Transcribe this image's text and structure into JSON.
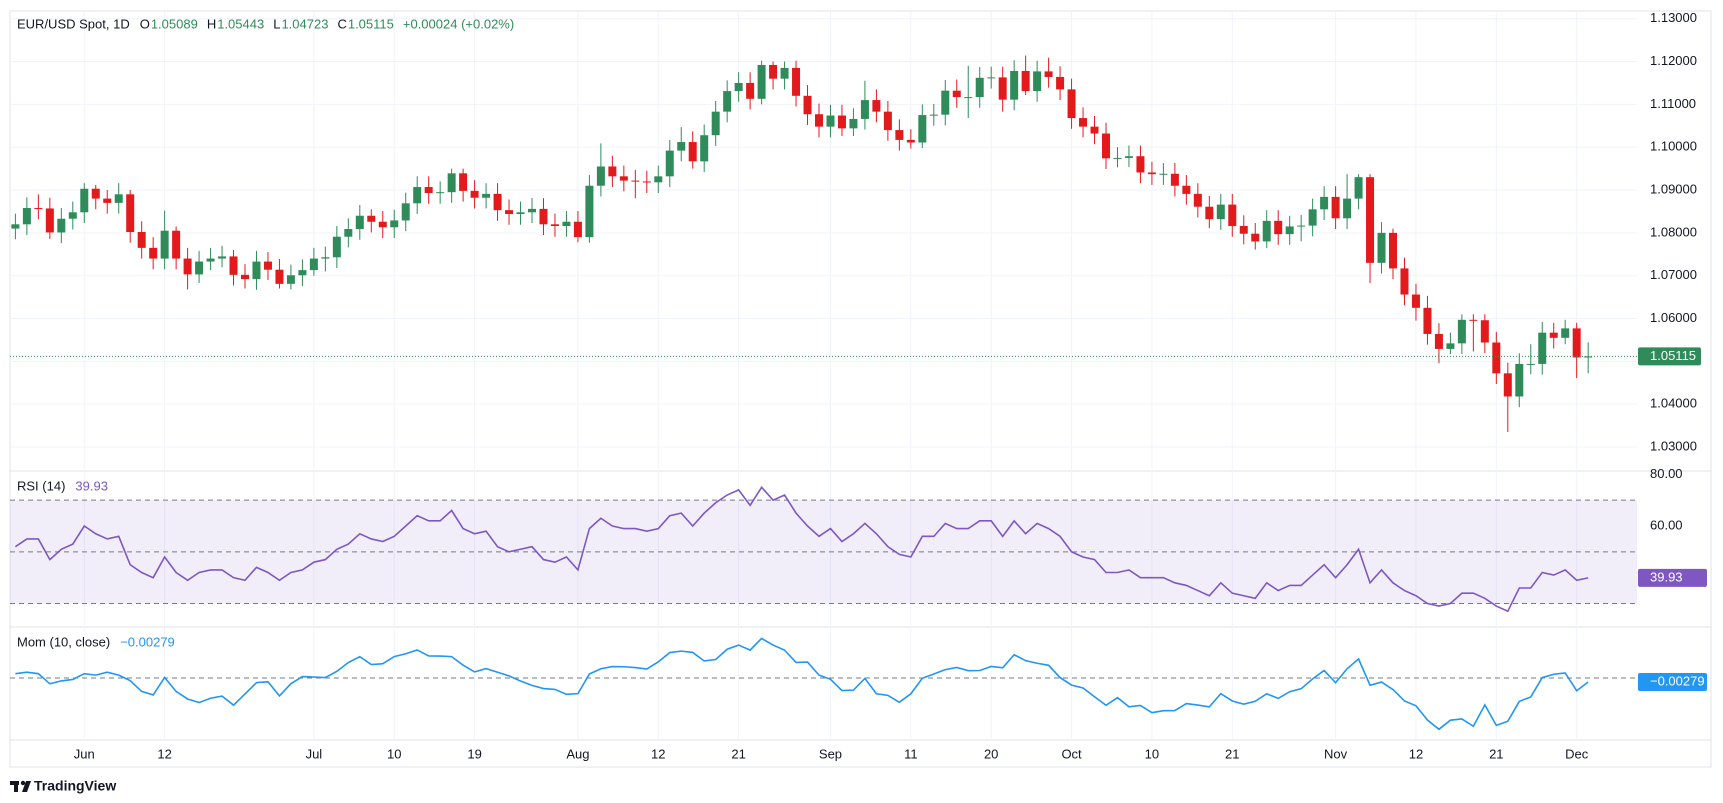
{
  "header": {
    "symbol": "EUR/USD Spot, 1D",
    "o_label": "O",
    "open": "1.05089",
    "h_label": "H",
    "high": "1.05443",
    "l_label": "L",
    "low": "1.04723",
    "c_label": "C",
    "close": "1.05115",
    "change": "+0.00024 (+0.02%)"
  },
  "chart_data": [
    {
      "type": "candlestick",
      "up_color": "#2f8c5a",
      "down_color": "#e31a1c",
      "grid": true,
      "ylim": [
        1.0244,
        1.1318
      ],
      "yticks": [
        {
          "value": 1.03,
          "label": "1.03000"
        },
        {
          "value": 1.04,
          "label": "1.04000"
        },
        {
          "value": 1.05,
          "label": "1.05000"
        },
        {
          "value": 1.06,
          "label": "1.06000"
        },
        {
          "value": 1.07,
          "label": "1.07000"
        },
        {
          "value": 1.08,
          "label": "1.08000"
        },
        {
          "value": 1.09,
          "label": "1.09000"
        },
        {
          "value": 1.1,
          "label": "1.10000"
        },
        {
          "value": 1.11,
          "label": "1.11000"
        },
        {
          "value": 1.12,
          "label": "1.12000"
        },
        {
          "value": 1.13,
          "label": "1.13000"
        }
      ],
      "xticks": [
        {
          "value": 6,
          "label": "Jun"
        },
        {
          "value": 13,
          "label": "12"
        },
        {
          "value": 26,
          "label": "Jul"
        },
        {
          "value": 33,
          "label": "10"
        },
        {
          "value": 40,
          "label": "19"
        },
        {
          "value": 49,
          "label": "Aug"
        },
        {
          "value": 56,
          "label": "12"
        },
        {
          "value": 63,
          "label": "21"
        },
        {
          "value": 71,
          "label": "Sep"
        },
        {
          "value": 78,
          "label": "11"
        },
        {
          "value": 85,
          "label": "20"
        },
        {
          "value": 92,
          "label": "Oct"
        },
        {
          "value": 99,
          "label": "10"
        },
        {
          "value": 106,
          "label": "21"
        },
        {
          "value": 115,
          "label": "Nov"
        },
        {
          "value": 122,
          "label": "12"
        },
        {
          "value": 129,
          "label": "21"
        },
        {
          "value": 136,
          "label": "Dec"
        }
      ],
      "last_price_label": "1.05115",
      "candles": [
        [
          1.081,
          1.0845,
          1.0785,
          1.082
        ],
        [
          1.082,
          1.0883,
          1.0795,
          1.0858
        ],
        [
          1.0858,
          1.089,
          1.0832,
          1.0857
        ],
        [
          1.0857,
          1.0882,
          1.0786,
          1.0801
        ],
        [
          1.0801,
          1.0858,
          1.0776,
          1.0833
        ],
        [
          1.0833,
          1.0873,
          1.0808,
          1.0848
        ],
        [
          1.0848,
          1.0916,
          1.0823,
          1.0903
        ],
        [
          1.0903,
          1.0912,
          1.0855,
          1.088
        ],
        [
          1.088,
          1.09,
          1.0845,
          1.087
        ],
        [
          1.087,
          1.0916,
          1.0845,
          1.089
        ],
        [
          1.089,
          1.09,
          1.0777,
          1.0802
        ],
        [
          1.0802,
          1.0827,
          1.074,
          1.0765
        ],
        [
          1.0765,
          1.079,
          1.0715,
          1.074
        ],
        [
          1.074,
          1.0852,
          1.0715,
          1.0805
        ],
        [
          1.0805,
          1.0815,
          1.0715,
          1.074
        ],
        [
          1.074,
          1.0765,
          1.0668,
          1.0703
        ],
        [
          1.0703,
          1.0758,
          1.0683,
          1.0733
        ],
        [
          1.0733,
          1.0765,
          1.0713,
          1.074
        ],
        [
          1.074,
          1.077,
          1.072,
          1.0745
        ],
        [
          1.0745,
          1.076,
          1.0677,
          1.0702
        ],
        [
          1.0702,
          1.0727,
          1.067,
          1.0692
        ],
        [
          1.0692,
          1.0758,
          1.0667,
          1.0733
        ],
        [
          1.0733,
          1.0755,
          1.069,
          1.0714
        ],
        [
          1.0714,
          1.0739,
          1.067,
          1.0681
        ],
        [
          1.0681,
          1.0726,
          1.0668,
          1.0701
        ],
        [
          1.0701,
          1.0738,
          1.0676,
          1.0713
        ],
        [
          1.0713,
          1.0765,
          1.07,
          1.074
        ],
        [
          1.074,
          1.0768,
          1.071,
          1.0743
        ],
        [
          1.0743,
          1.0816,
          1.0718,
          1.0791
        ],
        [
          1.0791,
          1.0834,
          1.0766,
          1.0809
        ],
        [
          1.0809,
          1.0865,
          1.0784,
          1.084
        ],
        [
          1.084,
          1.0855,
          1.0801,
          1.0826
        ],
        [
          1.0826,
          1.0851,
          1.0788,
          1.0813
        ],
        [
          1.0813,
          1.0854,
          1.0788,
          1.0829
        ],
        [
          1.0829,
          1.0894,
          1.0804,
          1.0869
        ],
        [
          1.0869,
          1.0932,
          1.0844,
          1.0907
        ],
        [
          1.0907,
          1.0932,
          1.0868,
          1.0893
        ],
        [
          1.0893,
          1.092,
          1.0868,
          1.0895
        ],
        [
          1.0895,
          1.095,
          1.087,
          1.0939
        ],
        [
          1.0939,
          1.095,
          1.0873,
          1.0898
        ],
        [
          1.0898,
          1.0923,
          1.0857,
          1.0882
        ],
        [
          1.0882,
          1.0916,
          1.0857,
          1.0891
        ],
        [
          1.0891,
          1.0916,
          1.0828,
          1.0853
        ],
        [
          1.0853,
          1.0878,
          1.0819,
          1.0844
        ],
        [
          1.0844,
          1.0873,
          1.0819,
          1.0848
        ],
        [
          1.0848,
          1.0881,
          1.0823,
          1.0856
        ],
        [
          1.0856,
          1.0881,
          1.0795,
          1.082
        ],
        [
          1.082,
          1.0845,
          1.0791,
          1.0816
        ],
        [
          1.0816,
          1.0851,
          1.0791,
          1.0826
        ],
        [
          1.0826,
          1.0851,
          1.0778,
          1.079
        ],
        [
          1.079,
          1.0935,
          1.0777,
          1.091
        ],
        [
          1.091,
          1.1009,
          1.0885,
          1.0955
        ],
        [
          1.0955,
          1.098,
          1.0907,
          1.0932
        ],
        [
          1.0932,
          1.0957,
          1.0897,
          1.0922
        ],
        [
          1.0922,
          1.0947,
          1.0881,
          1.092
        ],
        [
          1.092,
          1.0945,
          1.0893,
          1.0918
        ],
        [
          1.0918,
          1.0957,
          1.0893,
          1.0932
        ],
        [
          1.0932,
          1.1017,
          1.0907,
          1.0992
        ],
        [
          1.0992,
          1.1047,
          1.0967,
          1.1012
        ],
        [
          1.1012,
          1.1037,
          1.095,
          1.0967
        ],
        [
          1.0967,
          1.1053,
          1.0942,
          1.1028
        ],
        [
          1.1028,
          1.1108,
          1.1003,
          1.1083
        ],
        [
          1.1083,
          1.1156,
          1.1058,
          1.1131
        ],
        [
          1.1131,
          1.1175,
          1.1106,
          1.115
        ],
        [
          1.115,
          1.1175,
          1.1088,
          1.1113
        ],
        [
          1.1113,
          1.1202,
          1.11,
          1.1192
        ],
        [
          1.1192,
          1.12,
          1.1135,
          1.116
        ],
        [
          1.116,
          1.12,
          1.1135,
          1.1185
        ],
        [
          1.1185,
          1.1202,
          1.1095,
          1.112
        ],
        [
          1.112,
          1.1145,
          1.1052,
          1.1077
        ],
        [
          1.1077,
          1.1102,
          1.1023,
          1.1048
        ],
        [
          1.1048,
          1.1099,
          1.1023,
          1.1074
        ],
        [
          1.1074,
          1.1099,
          1.1026,
          1.1044
        ],
        [
          1.1044,
          1.1091,
          1.1026,
          1.1066
        ],
        [
          1.1066,
          1.1155,
          1.1041,
          1.111
        ],
        [
          1.111,
          1.1135,
          1.1058,
          1.1083
        ],
        [
          1.1083,
          1.1108,
          1.1015,
          1.104
        ],
        [
          1.104,
          1.1065,
          1.0992,
          1.1017
        ],
        [
          1.1017,
          1.1042,
          1.0997,
          1.1011
        ],
        [
          1.1011,
          1.11,
          1.0998,
          1.1075
        ],
        [
          1.1075,
          1.1101,
          1.105,
          1.1076
        ],
        [
          1.1076,
          1.1157,
          1.1051,
          1.1132
        ],
        [
          1.1132,
          1.1158,
          1.1092,
          1.1117
        ],
        [
          1.1117,
          1.119,
          1.1068,
          1.1117
        ],
        [
          1.1117,
          1.1187,
          1.1092,
          1.1162
        ],
        [
          1.1162,
          1.1188,
          1.1137,
          1.1163
        ],
        [
          1.1163,
          1.1188,
          1.1083,
          1.1111
        ],
        [
          1.1111,
          1.1203,
          1.1086,
          1.1178
        ],
        [
          1.1178,
          1.1214,
          1.1122,
          1.1131
        ],
        [
          1.1131,
          1.1202,
          1.1106,
          1.1177
        ],
        [
          1.1177,
          1.1209,
          1.1139,
          1.1164
        ],
        [
          1.1164,
          1.1189,
          1.111,
          1.1135
        ],
        [
          1.1135,
          1.116,
          1.1043,
          1.1068
        ],
        [
          1.1068,
          1.1093,
          1.1023,
          1.1048
        ],
        [
          1.1048,
          1.1073,
          1.1007,
          1.1032
        ],
        [
          1.1032,
          1.1057,
          1.0949,
          1.0974
        ],
        [
          1.0974,
          1.1,
          1.0953,
          1.0975
        ],
        [
          1.0975,
          1.1004,
          1.0954,
          1.0979
        ],
        [
          1.0979,
          1.1004,
          1.0916,
          1.0941
        ],
        [
          1.0941,
          1.0966,
          1.0912,
          1.0937
        ],
        [
          1.0937,
          1.0963,
          1.0912,
          1.0938
        ],
        [
          1.0938,
          1.0963,
          1.0885,
          1.091
        ],
        [
          1.091,
          1.0935,
          1.0866,
          1.0891
        ],
        [
          1.0891,
          1.0916,
          1.0836,
          1.0861
        ],
        [
          1.0861,
          1.0886,
          1.0811,
          1.0832
        ],
        [
          1.0832,
          1.0891,
          1.0807,
          1.0866
        ],
        [
          1.0866,
          1.0891,
          1.0791,
          1.0816
        ],
        [
          1.0816,
          1.0841,
          1.0773,
          1.0798
        ],
        [
          1.0798,
          1.0823,
          1.0761,
          1.078
        ],
        [
          1.078,
          1.0853,
          1.0765,
          1.0828
        ],
        [
          1.0828,
          1.0853,
          1.0772,
          1.0797
        ],
        [
          1.0797,
          1.084,
          1.0772,
          1.0815
        ],
        [
          1.0815,
          1.0842,
          1.078,
          1.0817
        ],
        [
          1.0817,
          1.088,
          1.0792,
          1.0855
        ],
        [
          1.0855,
          1.0909,
          1.083,
          1.0884
        ],
        [
          1.0884,
          1.0909,
          1.0809,
          1.0834
        ],
        [
          1.0834,
          1.0937,
          1.0809,
          1.088
        ],
        [
          1.088,
          1.0937,
          1.0855,
          1.093
        ],
        [
          1.093,
          1.0937,
          1.0683,
          1.073
        ],
        [
          1.073,
          1.0825,
          1.0705,
          1.08
        ],
        [
          1.08,
          1.081,
          1.0692,
          1.0717
        ],
        [
          1.0717,
          1.0742,
          1.0631,
          1.0656
        ],
        [
          1.0656,
          1.0681,
          1.0595,
          1.0625
        ],
        [
          1.0625,
          1.0653,
          1.0539,
          1.0564
        ],
        [
          1.0564,
          1.0589,
          1.0496,
          1.0529
        ],
        [
          1.0529,
          1.0567,
          1.0517,
          1.0542
        ],
        [
          1.0542,
          1.061,
          1.0517,
          1.0597
        ],
        [
          1.0597,
          1.061,
          1.0523,
          1.0596
        ],
        [
          1.0596,
          1.061,
          1.0519,
          1.0544
        ],
        [
          1.0544,
          1.0569,
          1.0447,
          1.0472
        ],
        [
          1.0472,
          1.0497,
          1.0335,
          1.0418
        ],
        [
          1.0418,
          1.0519,
          1.0393,
          1.0494
        ],
        [
          1.0494,
          1.054,
          1.047,
          1.0494
        ],
        [
          1.0494,
          1.0592,
          1.0469,
          1.0567
        ],
        [
          1.0567,
          1.059,
          1.053,
          1.0555
        ],
        [
          1.0555,
          1.0597,
          1.054,
          1.0577
        ],
        [
          1.0577,
          1.059,
          1.0461,
          1.05091
        ],
        [
          1.05089,
          1.05443,
          1.04723,
          1.05115
        ]
      ]
    },
    {
      "type": "line",
      "title": "RSI (14)",
      "value_label": "39.93",
      "color": "#7e57c2",
      "ylim": [
        20.9,
        81.3
      ],
      "yticks": [
        {
          "value": 80,
          "label": "80.00"
        },
        {
          "value": 60,
          "label": "60.00"
        }
      ],
      "levels": [
        70,
        50,
        30
      ],
      "values": [
        52,
        55,
        55,
        47,
        51,
        53,
        60,
        57,
        55,
        56,
        45,
        42,
        40,
        48,
        42,
        39,
        42,
        43,
        43,
        40,
        39,
        44,
        42,
        39,
        42,
        43,
        46,
        47,
        51,
        53,
        57,
        55,
        54,
        56,
        60,
        64,
        62,
        62,
        66,
        59,
        57,
        58,
        52,
        50,
        51,
        52,
        47,
        46,
        48,
        43,
        59,
        63,
        60,
        59,
        59,
        58,
        59,
        64,
        65,
        60,
        65,
        69,
        72,
        74,
        68,
        75,
        70,
        72,
        65,
        60,
        56,
        59,
        54,
        57,
        61,
        57,
        52,
        49,
        48,
        56,
        56,
        61,
        59,
        59,
        62,
        62,
        56,
        62,
        57,
        61,
        59,
        56,
        50,
        48,
        47,
        42,
        42,
        43,
        40,
        40,
        40,
        38,
        37,
        35,
        33,
        38,
        34,
        33,
        32,
        38,
        35,
        37,
        37,
        41,
        45,
        40,
        45,
        51,
        38,
        43,
        38,
        35,
        33,
        30,
        29,
        30,
        34,
        34,
        32,
        29,
        27,
        36,
        36,
        42,
        41,
        43,
        39,
        39.93
      ]
    },
    {
      "type": "line",
      "title": "Mom (10, close)",
      "value_label": "−0.00279",
      "color": "#2196f3",
      "ylim": [
        -0.0429,
        0.0353
      ],
      "levels": [
        0
      ],
      "values": [
        0.003,
        0.004,
        0.003,
        -0.004,
        -0.002,
        -0.001,
        0.003,
        0.002,
        0.004,
        0.002,
        -0.0018,
        -0.0093,
        -0.0117,
        0.0004,
        -0.0093,
        -0.0145,
        -0.017,
        -0.014,
        -0.0125,
        -0.0188,
        -0.011,
        -0.0032,
        -0.0026,
        -0.0124,
        -0.0039,
        0.001,
        0.0007,
        0.0003,
        0.0046,
        0.0107,
        0.0148,
        0.0093,
        0.0099,
        0.0148,
        0.0168,
        0.0194,
        0.0153,
        0.0152,
        0.0148,
        0.0089,
        0.0042,
        0.0065,
        0.004,
        0.0015,
        -0.0021,
        -0.0051,
        -0.0073,
        -0.0079,
        -0.0113,
        -0.0108,
        0.0028,
        0.0064,
        0.0079,
        0.0078,
        0.0072,
        0.0062,
        0.0112,
        0.0176,
        0.0186,
        0.0177,
        0.0118,
        0.0128,
        0.0199,
        0.0228,
        0.0193,
        0.0274,
        0.0228,
        0.0193,
        0.0108,
        0.011,
        0.002,
        -0.0009,
        -0.0087,
        -0.0084,
        -0.0003,
        -0.0109,
        -0.012,
        -0.0168,
        -0.0109,
        -0.0002,
        0.0028,
        0.0058,
        0.0073,
        0.0051,
        0.0052,
        0.008,
        0.0071,
        0.0161,
        0.012,
        0.0102,
        0.0088,
        0.0003,
        -0.0049,
        -0.0069,
        -0.013,
        -0.0189,
        -0.0136,
        -0.0199,
        -0.019,
        -0.024,
        -0.0226,
        -0.0225,
        -0.0177,
        -0.0187,
        -0.02,
        -0.0108,
        -0.0159,
        -0.0181,
        -0.0161,
        -0.0109,
        -0.0141,
        -0.0095,
        -0.0074,
        -0.0006,
        0.0052,
        -0.0032,
        0.0064,
        0.0132,
        -0.005,
        -0.0028,
        -0.008,
        -0.0159,
        -0.0192,
        -0.0291,
        -0.0355,
        -0.0292,
        -0.0283,
        -0.0334,
        -0.0186,
        -0.0328,
        -0.0299,
        -0.0162,
        -0.0131,
        0.0003,
        0.0026,
        0.0035,
        -0.0088,
        -0.00279
      ]
    }
  ],
  "footer": {
    "brand": "TradingView"
  }
}
